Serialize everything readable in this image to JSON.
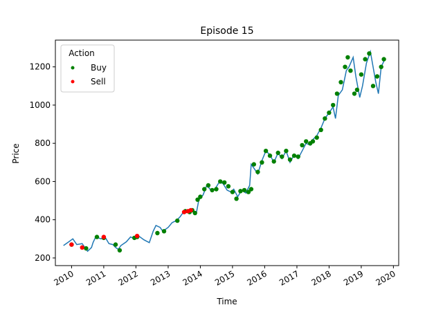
{
  "chart_data": {
    "type": "scatter",
    "title": "Episode 15",
    "xlabel": "Time",
    "ylabel": "Price",
    "xlim": [
      "2009-07-01",
      "2020-03-01"
    ],
    "ylim": [
      160,
      1340
    ],
    "yticks": [
      200,
      400,
      600,
      800,
      1000,
      1200
    ],
    "xticks": [
      "2010-01-01",
      "2011-01-01",
      "2012-01-01",
      "2013-01-01",
      "2014-01-01",
      "2015-01-01",
      "2016-01-01",
      "2017-01-01",
      "2018-01-01",
      "2019-01-01",
      "2020-01-01"
    ],
    "xtick_labels": [
      "2010",
      "2011",
      "2012",
      "2013",
      "2014",
      "2015",
      "2016",
      "2017",
      "2018",
      "2019",
      "2020"
    ],
    "grid": false,
    "legend": {
      "title": "Action",
      "placement": "top-left"
    },
    "price_line": {
      "color": "#1f77b4",
      "x": [
        "2009-10-01",
        "2009-12-01",
        "2010-01-15",
        "2010-03-01",
        "2010-05-01",
        "2010-06-15",
        "2010-07-01",
        "2010-08-15",
        "2010-09-01",
        "2010-10-01",
        "2010-11-01",
        "2010-12-01",
        "2011-01-15",
        "2011-03-01",
        "2011-04-15",
        "2011-05-15",
        "2011-06-15",
        "2011-07-15",
        "2011-08-15",
        "2011-09-15",
        "2011-11-01",
        "2011-12-15",
        "2012-02-01",
        "2012-04-01",
        "2012-06-01",
        "2012-07-15",
        "2012-08-15",
        "2012-10-01",
        "2012-11-01",
        "2013-01-01",
        "2013-02-15",
        "2013-04-01",
        "2013-05-15",
        "2013-07-01",
        "2013-09-01",
        "2013-10-15",
        "2013-11-15",
        "2013-12-15",
        "2014-02-01",
        "2014-03-15",
        "2014-05-01",
        "2014-06-15",
        "2014-08-01",
        "2014-09-15",
        "2014-11-01",
        "2014-12-15",
        "2015-01-15",
        "2015-03-01",
        "2015-04-15",
        "2015-06-01",
        "2015-07-15",
        "2015-08-01",
        "2015-09-01",
        "2015-10-15",
        "2015-12-01",
        "2016-01-15",
        "2016-03-01",
        "2016-04-15",
        "2016-06-01",
        "2016-07-15",
        "2016-09-01",
        "2016-10-15",
        "2016-12-01",
        "2017-01-15",
        "2017-03-01",
        "2017-04-15",
        "2017-06-01",
        "2017-07-01",
        "2017-08-15",
        "2017-10-01",
        "2017-11-15",
        "2018-01-01",
        "2018-02-15",
        "2018-03-15",
        "2018-04-15",
        "2018-06-01",
        "2018-07-15",
        "2018-08-15",
        "2018-10-01",
        "2018-11-01",
        "2018-12-15",
        "2019-01-15",
        "2019-03-01",
        "2019-04-15",
        "2019-05-15",
        "2019-06-15",
        "2019-07-15",
        "2019-08-15",
        "2019-09-15"
      ],
      "y": [
        265,
        285,
        300,
        270,
        275,
        245,
        235,
        255,
        280,
        310,
        305,
        300,
        310,
        275,
        270,
        255,
        245,
        265,
        275,
        285,
        310,
        300,
        315,
        295,
        280,
        340,
        370,
        360,
        340,
        360,
        385,
        395,
        415,
        445,
        440,
        450,
        430,
        505,
        530,
        580,
        555,
        560,
        595,
        590,
        555,
        545,
        560,
        520,
        555,
        540,
        580,
        690,
        670,
        640,
        710,
        760,
        740,
        700,
        750,
        720,
        760,
        700,
        740,
        720,
        760,
        800,
        790,
        820,
        840,
        880,
        930,
        960,
        990,
        930,
        1050,
        1080,
        1180,
        1200,
        1250,
        1150,
        1040,
        1100,
        1220,
        1280,
        1200,
        1120,
        1060,
        1200,
        1230
      ]
    },
    "series": [
      {
        "name": "Buy",
        "color": "#008000",
        "x": [
          "2010-01-01",
          "2010-06-15",
          "2010-10-15",
          "2011-01-01",
          "2011-05-15",
          "2011-07-01",
          "2011-12-15",
          "2012-01-15",
          "2012-09-01",
          "2012-11-15",
          "2013-04-15",
          "2013-07-15",
          "2013-09-01",
          "2013-10-01",
          "2013-11-01",
          "2013-12-01",
          "2014-01-01",
          "2014-02-15",
          "2014-04-01",
          "2014-05-15",
          "2014-07-01",
          "2014-08-15",
          "2014-10-01",
          "2014-11-15",
          "2015-01-01",
          "2015-02-15",
          "2015-04-01",
          "2015-05-15",
          "2015-07-01",
          "2015-08-01",
          "2015-09-01",
          "2015-10-15",
          "2015-12-01",
          "2016-01-15",
          "2016-03-01",
          "2016-04-15",
          "2016-06-01",
          "2016-07-15",
          "2016-09-01",
          "2016-10-15",
          "2016-12-01",
          "2017-01-15",
          "2017-03-01",
          "2017-04-15",
          "2017-06-01",
          "2017-07-01",
          "2017-08-15",
          "2017-10-01",
          "2017-11-15",
          "2018-01-01",
          "2018-02-15",
          "2018-04-01",
          "2018-05-15",
          "2018-07-01",
          "2018-08-01",
          "2018-09-01",
          "2018-10-15",
          "2018-11-15",
          "2019-01-01",
          "2019-02-15",
          "2019-04-01",
          "2019-05-15",
          "2019-07-01",
          "2019-08-15",
          "2019-09-15"
        ],
        "y": [
          270,
          250,
          310,
          305,
          270,
          240,
          305,
          310,
          330,
          340,
          395,
          445,
          440,
          450,
          435,
          505,
          520,
          560,
          580,
          555,
          560,
          600,
          595,
          575,
          545,
          510,
          550,
          555,
          545,
          560,
          690,
          650,
          700,
          760,
          735,
          705,
          750,
          730,
          760,
          715,
          735,
          730,
          790,
          810,
          800,
          810,
          830,
          870,
          930,
          960,
          1000,
          1060,
          1120,
          1200,
          1250,
          1180,
          1060,
          1080,
          1160,
          1240,
          1270,
          1100,
          1150,
          1200,
          1240
        ]
      },
      {
        "name": "Sell",
        "color": "#ff0000",
        "x": [
          "2010-01-01",
          "2010-05-01",
          "2011-01-01",
          "2012-01-15",
          "2013-07-01",
          "2013-08-15",
          "2013-09-15"
        ],
        "y": [
          270,
          255,
          310,
          315,
          440,
          445,
          450
        ]
      }
    ]
  }
}
